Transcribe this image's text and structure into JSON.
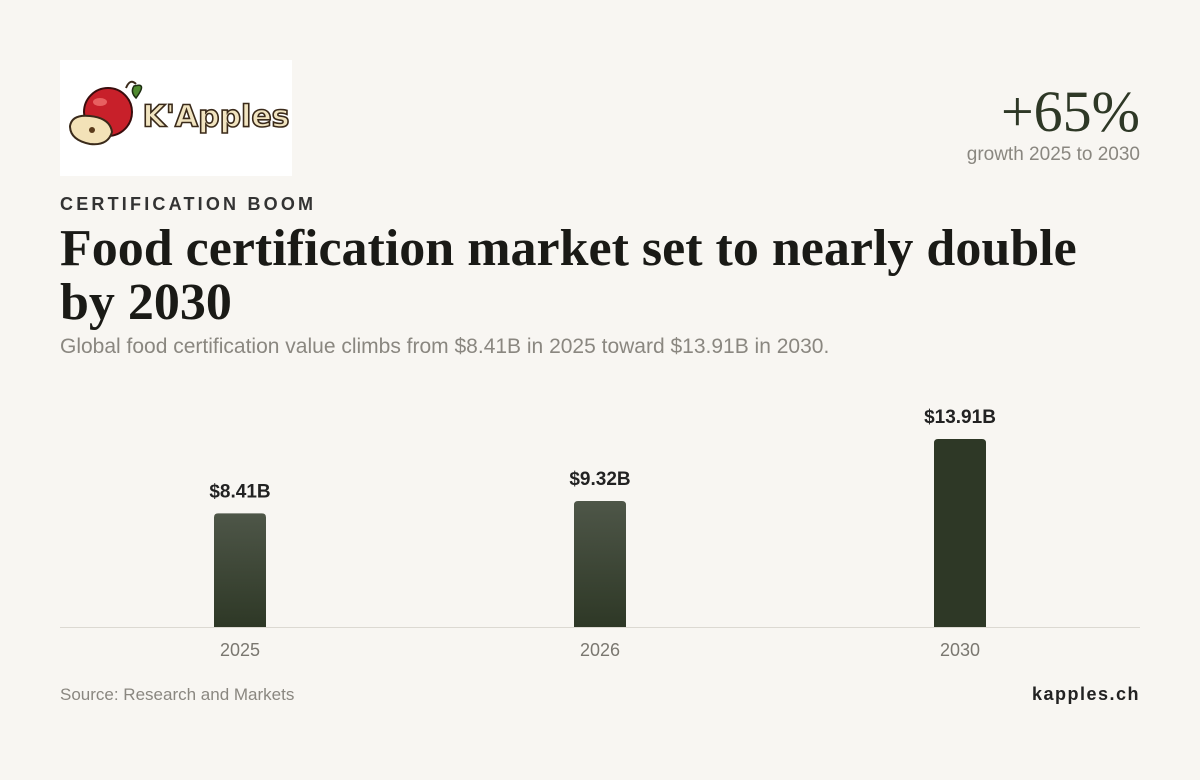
{
  "logo": "K'Apples",
  "stat": {
    "value": "+65%",
    "label": "growth 2025 to 2030"
  },
  "kicker": "CERTIFICATION BOOM",
  "chart_data": {
    "type": "bar",
    "title": "Food certification market set to nearly double by 2030",
    "subtitle": "Global food certification value climbs from $8.41B in 2025 toward $13.91B in 2030.",
    "categories": [
      "2025",
      "2026",
      "2030"
    ],
    "values": [
      8.41,
      9.32,
      13.91
    ],
    "value_labels": [
      "$8.41B",
      "$9.32B",
      "$13.91B"
    ],
    "colors": [
      "#4e5648",
      "#4e5648",
      "#2e3826"
    ]
  },
  "source": "Source: Research and Markets",
  "site": "kapples.ch"
}
